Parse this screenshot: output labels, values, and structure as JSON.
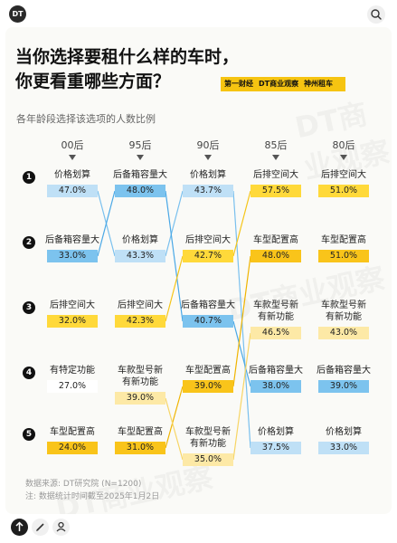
{
  "header": {
    "logo": "DT"
  },
  "title_lines": [
    "当你选择要租什么样的车时，",
    "你更看重哪些方面？"
  ],
  "brands": [
    "第一财经",
    "DT商业观察",
    "神州租车"
  ],
  "watermark": "DT商业观察",
  "chart_data": {
    "type": "table",
    "subtitle": "各年龄段选择该选项的人数比例",
    "columns": [
      "00后",
      "95后",
      "90后",
      "85后",
      "80后"
    ],
    "ranks": [
      "1",
      "2",
      "3",
      "4",
      "5"
    ],
    "cells": [
      [
        {
          "label": "价格划算",
          "value": "47.0%"
        },
        {
          "label": "后备箱容量大",
          "value": "33.0%"
        },
        {
          "label": "后排空间大",
          "value": "32.0%"
        },
        {
          "label": "有特定功能",
          "value": "27.0%"
        },
        {
          "label": "车型配置高",
          "value": "24.0%"
        }
      ],
      [
        {
          "label": "后备箱容量大",
          "value": "48.0%"
        },
        {
          "label": "价格划算",
          "value": "43.3%"
        },
        {
          "label": "后排空间大",
          "value": "42.3%"
        },
        {
          "label": "车款型号新\n有新功能",
          "value": "39.0%"
        },
        {
          "label": "车型配置高",
          "value": "31.0%"
        }
      ],
      [
        {
          "label": "价格划算",
          "value": "43.7%"
        },
        {
          "label": "后排空间大",
          "value": "42.7%"
        },
        {
          "label": "后备箱容量大",
          "value": "40.7%"
        },
        {
          "label": "车型配置高",
          "value": "39.0%"
        },
        {
          "label": "车款型号新\n有新功能",
          "value": "35.0%"
        }
      ],
      [
        {
          "label": "后排空间大",
          "value": "57.5%"
        },
        {
          "label": "车型配置高",
          "value": "48.0%"
        },
        {
          "label": "车款型号新\n有新功能",
          "value": "46.5%"
        },
        {
          "label": "后备箱容量大",
          "value": "38.0%"
        },
        {
          "label": "价格划算",
          "value": "37.5%"
        }
      ],
      [
        {
          "label": "后排空间大",
          "value": "51.0%"
        },
        {
          "label": "车型配置高",
          "value": "51.0%"
        },
        {
          "label": "车款型号新\n有新功能",
          "value": "43.0%"
        },
        {
          "label": "后备箱容量大",
          "value": "39.0%"
        },
        {
          "label": "价格划算",
          "value": "33.0%"
        }
      ]
    ],
    "category_colors": {
      "价格划算": "#bfe0f6",
      "后备箱容量大": "#7cc3ee",
      "后排空间大": "#ffd93a",
      "车型配置高": "#f9c41a",
      "车款型号新\n有新功能": "#fde9a6",
      "有特定功能": "#ffffff"
    },
    "line_colors": {
      "价格划算": "#79c0ee",
      "后备箱容量大": "#4aa8e6",
      "后排空间大": "#f5c518",
      "车型配置高": "#f0b400",
      "车款型号新\n有新功能": "#f7d565"
    }
  },
  "notes": [
    "数据来源: DT研究院 (N=1200)",
    "注: 数据统计时间截至2025年1月2日"
  ]
}
